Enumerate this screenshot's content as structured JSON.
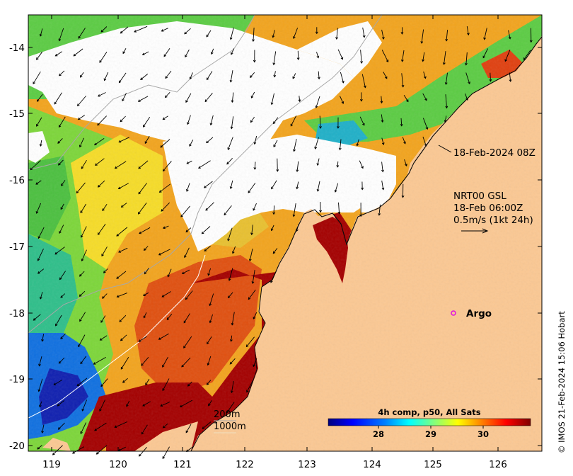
{
  "map": {
    "colors": {
      "land": "#fbc893",
      "no_data": "#ffffff",
      "arrow": "#000000",
      "argo": "#e010e0",
      "isobath": "#a8a8a8"
    },
    "lon_ticks": [
      "119",
      "120",
      "121",
      "122",
      "123",
      "124",
      "125",
      "126"
    ],
    "lat_ticks": [
      "-14",
      "-15",
      "-16",
      "-17",
      "-18",
      "-19",
      "-20"
    ],
    "sst_timestamp": "18-Feb-2024 08Z",
    "current_source": "NRT00 GSL",
    "current_time": "18-Feb 06:00Z",
    "current_scale": "0.5m/s (1kt 24h)",
    "argo_label": "Argo",
    "isobath_200": "200m",
    "isobath_1000": "1000m",
    "credit": "© IMOS 21-Feb-2024 15:06 Hobart",
    "colorbar": {
      "title": "4h comp, p50, All Sats",
      "ticks": [
        "28",
        "29",
        "30"
      ],
      "colors": [
        "#00007f",
        "#0000ff",
        "#007fff",
        "#00ffff",
        "#7fff7f",
        "#ffff00",
        "#ff7f00",
        "#ff0000",
        "#7f0000"
      ]
    }
  }
}
